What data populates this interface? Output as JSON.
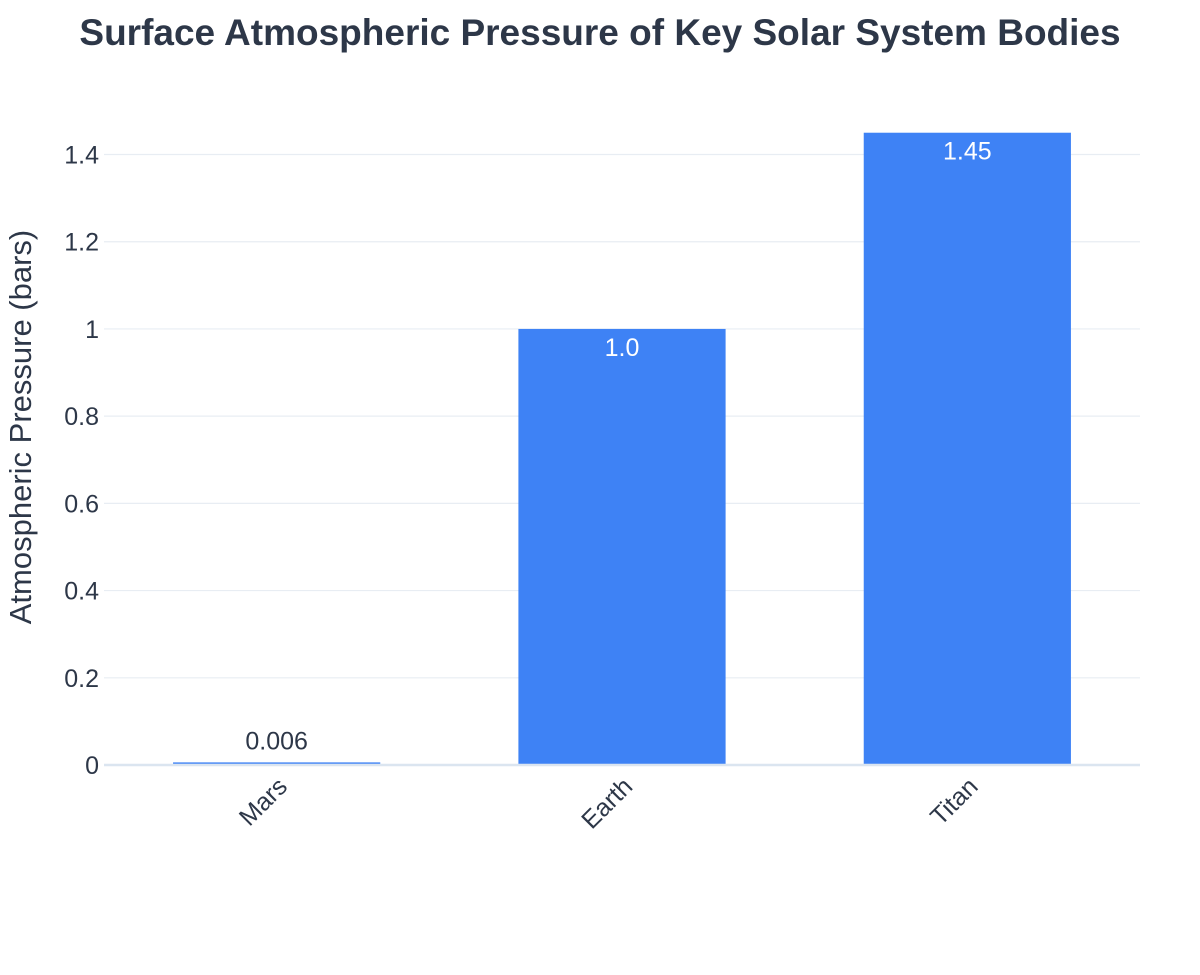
{
  "chart_data": {
    "type": "bar",
    "title": "Surface Atmospheric Pressure of Key Solar System Bodies",
    "xlabel": "",
    "ylabel": "Atmospheric Pressure (bars)",
    "categories": [
      "Mars",
      "Earth",
      "Titan"
    ],
    "values": [
      0.006,
      1.0,
      1.45
    ],
    "data_labels": [
      "0.006",
      "1.0",
      "1.45"
    ],
    "ylim": [
      0,
      1.47
    ],
    "y_ticks": [
      0,
      0.2,
      0.4,
      0.6,
      0.8,
      1,
      1.2,
      1.4
    ],
    "y_tick_labels": [
      "0",
      "0.2",
      "0.4",
      "0.6",
      "0.8",
      "1",
      "1.2",
      "1.4"
    ],
    "grid": true,
    "legend": "none",
    "bar_color": "#3e82f5",
    "label_color_inside": "#ffffff",
    "label_color_outside": "#2d3748",
    "text_color": "#2d3748"
  }
}
